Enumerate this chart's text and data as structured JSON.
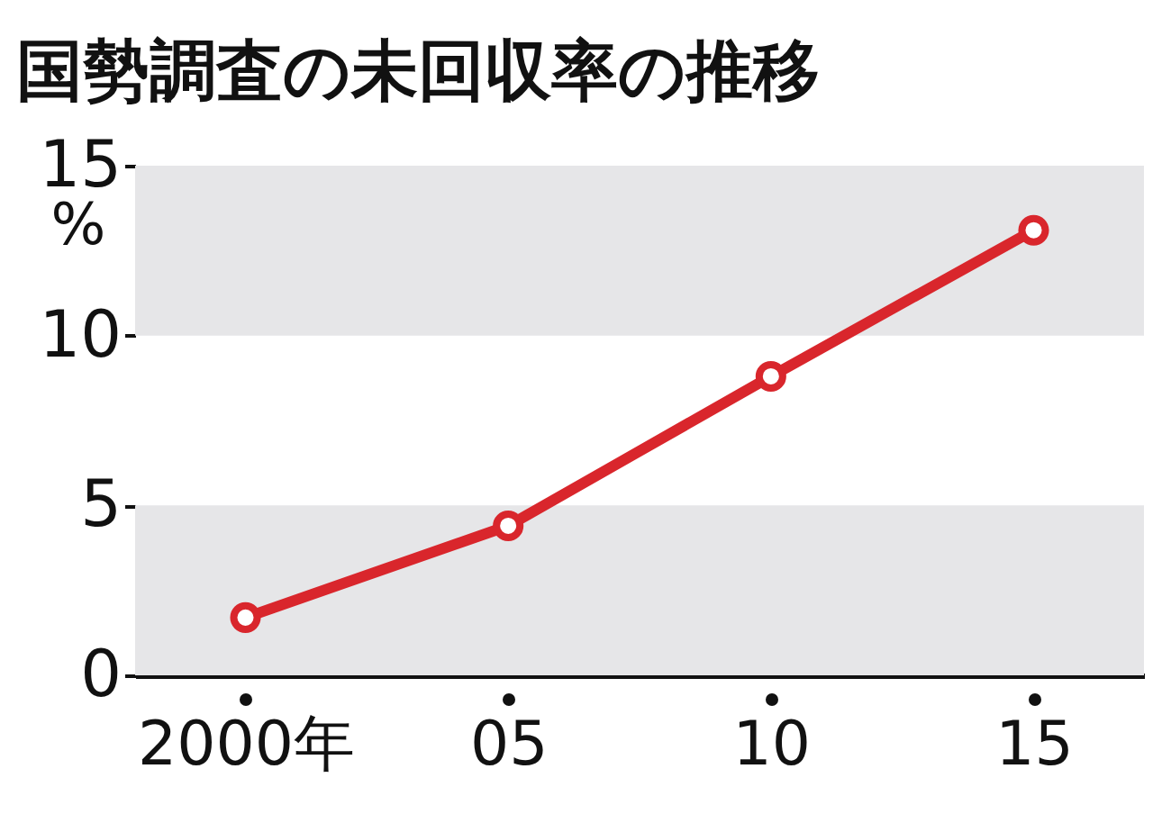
{
  "chart_data": {
    "type": "line",
    "title": "国勢調査の未回収率の推移",
    "ylabel": "%",
    "categories": [
      "2000年",
      "05",
      "10",
      "15"
    ],
    "series": [
      {
        "color": "#d9262c",
        "values": [
          1.7,
          4.4,
          8.8,
          13.1
        ]
      }
    ],
    "ylim": [
      0,
      15
    ],
    "yticks": [
      0,
      5,
      10,
      15
    ],
    "grid": false,
    "marker": "circle",
    "bands": [
      {
        "axis": "y",
        "from": 0,
        "to": 5,
        "color": "#e6e6e8"
      },
      {
        "axis": "y",
        "from": 10,
        "to": 15,
        "color": "#e6e6e8"
      }
    ]
  }
}
